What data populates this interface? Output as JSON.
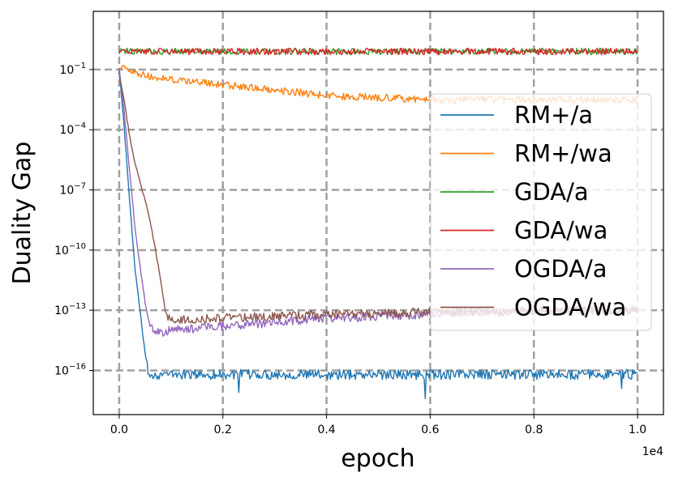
{
  "chart_data": {
    "type": "line",
    "title": "",
    "xlabel": "epoch",
    "ylabel": "Duality Gap",
    "x_offset_label": "1e4",
    "xlim": [
      -0.05,
      1.05
    ],
    "ylog_lim": [
      -18.2,
      1.9
    ],
    "x_ticks": [
      {
        "value": 0.0,
        "label": "0.0"
      },
      {
        "value": 0.2,
        "label": "0.2"
      },
      {
        "value": 0.4,
        "label": "0.4"
      },
      {
        "value": 0.6,
        "label": "0.6"
      },
      {
        "value": 0.8,
        "label": "0.8"
      },
      {
        "value": 1.0,
        "label": "1.0"
      }
    ],
    "y_ticks": [
      {
        "exp": -1,
        "base": "10",
        "sup": "−1"
      },
      {
        "exp": -4,
        "base": "10",
        "sup": "−4"
      },
      {
        "exp": -7,
        "base": "10",
        "sup": "−7"
      },
      {
        "exp": -10,
        "base": "10",
        "sup": "−10"
      },
      {
        "exp": -13,
        "base": "10",
        "sup": "−13"
      },
      {
        "exp": -16,
        "base": "10",
        "sup": "−16"
      }
    ],
    "grid": true,
    "legend_position": "right",
    "series": [
      {
        "name": "RM+/a",
        "color": "#1f77b4",
        "x": [
          0,
          0.01,
          0.02,
          0.03,
          0.04,
          0.05,
          0.055,
          0.06,
          0.1,
          0.2,
          0.4,
          0.6,
          0.8,
          1.0
        ],
        "log10_y": [
          -1.0,
          -4.0,
          -7.5,
          -10.8,
          -13.0,
          -15.2,
          -16.0,
          -16.2,
          -16.2,
          -16.2,
          -16.2,
          -16.2,
          -16.2,
          -16.2
        ],
        "noise": 0.25,
        "spikes": [
          [
            0.23,
            -17.1
          ],
          [
            0.59,
            -17.4
          ],
          [
            0.97,
            -16.9
          ]
        ]
      },
      {
        "name": "RM+/wa",
        "color": "#ff7f0e",
        "x": [
          0,
          0.02,
          0.05,
          0.1,
          0.2,
          0.3,
          0.4,
          0.5,
          0.6,
          0.7,
          0.8,
          0.9,
          1.0
        ],
        "log10_y": [
          -0.8,
          -1.1,
          -1.3,
          -1.5,
          -1.75,
          -2.0,
          -2.3,
          -2.4,
          -2.5,
          -2.5,
          -2.5,
          -2.5,
          -2.5
        ],
        "noise": 0.18,
        "spikes": []
      },
      {
        "name": "GDA/a",
        "color": "#2ca02c",
        "x": [
          0,
          0.5,
          1.0
        ],
        "log10_y": [
          -0.1,
          -0.1,
          -0.1
        ],
        "noise": 0.16,
        "spikes": []
      },
      {
        "name": "GDA/wa",
        "color": "#d62728",
        "x": [
          0,
          0.5,
          1.0
        ],
        "log10_y": [
          -0.1,
          -0.1,
          -0.1
        ],
        "noise": 0.16,
        "spikes": []
      },
      {
        "name": "OGDA/a",
        "color": "#9467bd",
        "x": [
          0,
          0.01,
          0.02,
          0.03,
          0.04,
          0.05,
          0.06,
          0.08,
          0.1,
          0.2,
          0.3,
          0.4,
          0.5,
          0.6,
          0.7,
          0.8,
          0.9,
          1.0
        ],
        "log10_y": [
          -0.9,
          -3.2,
          -6.0,
          -8.8,
          -10.8,
          -12.6,
          -13.9,
          -14.1,
          -14.0,
          -13.8,
          -13.6,
          -13.4,
          -13.3,
          -13.2,
          -13.1,
          -13.05,
          -13.0,
          -13.0
        ],
        "noise": 0.22,
        "spikes": []
      },
      {
        "name": "OGDA/wa",
        "color": "#8c564b",
        "x": [
          0,
          0.01,
          0.02,
          0.03,
          0.04,
          0.05,
          0.06,
          0.07,
          0.08,
          0.09,
          0.1,
          0.2,
          0.3,
          0.4,
          0.5,
          0.6,
          0.7,
          0.8,
          0.9,
          1.0
        ],
        "log10_y": [
          -1.3,
          -2.6,
          -4.3,
          -5.6,
          -6.6,
          -7.5,
          -8.6,
          -10.0,
          -11.5,
          -13.2,
          -13.5,
          -13.4,
          -13.3,
          -13.2,
          -13.15,
          -13.1,
          -13.05,
          -13.0,
          -13.0,
          -13.0
        ],
        "noise": 0.22,
        "spikes": []
      }
    ]
  }
}
